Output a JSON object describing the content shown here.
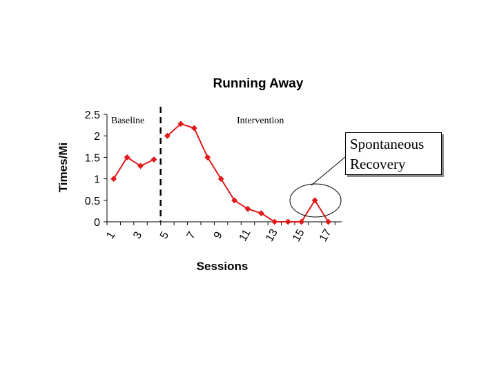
{
  "chart_data": {
    "type": "line",
    "title": "Running Away",
    "xlabel": "Sessions",
    "ylabel": "Times/Mi",
    "x_tick_labels": [
      "1",
      "3",
      "5",
      "7",
      "9",
      "11",
      "13",
      "15",
      "17"
    ],
    "yticks": [
      "0",
      "0.5",
      "1",
      "1.5",
      "2",
      "2.5"
    ],
    "ylim": [
      0,
      2.5
    ],
    "series": [
      {
        "name": "Baseline",
        "color": "#e0191a",
        "x": [
          1,
          2,
          3,
          4
        ],
        "values": [
          1,
          1.5,
          1.3,
          1.45
        ]
      },
      {
        "name": "Intervention",
        "color": "#e0191a",
        "x": [
          5,
          6,
          7,
          8,
          9,
          10,
          11,
          12,
          13,
          14,
          15,
          16,
          17
        ],
        "values": [
          2,
          2.28,
          2.18,
          1.5,
          1,
          0.5,
          0.3,
          0.2,
          0,
          0,
          0,
          0.5,
          0
        ]
      }
    ],
    "phase_line_between_sessions": [
      4,
      5
    ],
    "annotations": {
      "baseline_label": "Baseline",
      "intervention_label": "Intervention",
      "callout_line1": "Spontaneous",
      "callout_line2": "Recovery",
      "callout_target_session": 16
    }
  }
}
